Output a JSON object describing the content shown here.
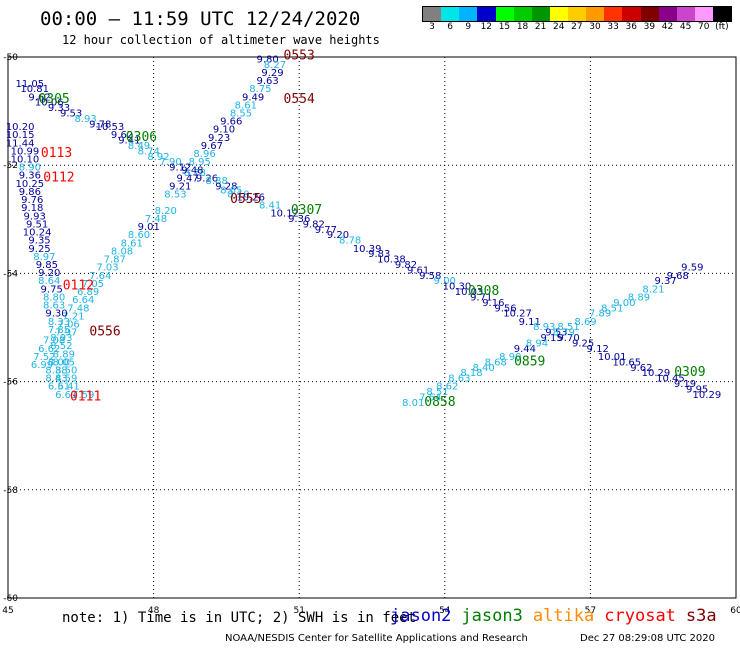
{
  "header": {
    "title": "00:00 – 11:59 UTC 12/24/2020",
    "subtitle": "12 hour collection of altimeter wave heights"
  },
  "legend": {
    "colors": [
      "#808080",
      "#00e6e6",
      "#00b4ff",
      "#0000cc",
      "#00ff00",
      "#00cc00",
      "#009600",
      "#ffff00",
      "#ffcc00",
      "#ff9900",
      "#ff3300",
      "#cc0000",
      "#800000",
      "#8b008b",
      "#cc44cc",
      "#ff99ff",
      "#000000"
    ],
    "labels": [
      "3",
      "6",
      "9",
      "12",
      "15",
      "18",
      "21",
      "24",
      "27",
      "30",
      "33",
      "36",
      "39",
      "42",
      "45",
      "70",
      "(ft)"
    ]
  },
  "axes": {
    "x_ticks": [
      "45",
      "48",
      "51",
      "54",
      "57",
      "60"
    ],
    "y_ticks": [
      "-50",
      "-52",
      "-54",
      "-56",
      "-58",
      "-60"
    ]
  },
  "footer": {
    "note": "note: 1) Time is in UTC; 2) SWH is in feet",
    "satellites": [
      {
        "name": "jason2",
        "color": "#0000cc"
      },
      {
        "name": "jason3",
        "color": "#008000"
      },
      {
        "name": "altika",
        "color": "#ff8c00"
      },
      {
        "name": "cryosat",
        "color": "#ff0000"
      },
      {
        "name": "s3a",
        "color": "#800000"
      }
    ],
    "credit": "NOAA/NESDIS Center for Satellite Applications and Research",
    "timestamp": "Dec 27 08:29:08 UTC 2020"
  },
  "colors": {
    "dark_blue": "#000099",
    "light_blue": "#1eb4e6",
    "green": "#008000",
    "red": "#ff0000",
    "maroon": "#800000"
  },
  "chart_data": {
    "type": "scatter",
    "xlim": [
      45,
      60
    ],
    "ylim": [
      -60,
      -50
    ],
    "grid": true,
    "observations": [
      {
        "x": 45.45,
        "y": -50.55,
        "v": "11.05",
        "c": "dark_blue"
      },
      {
        "x": 45.55,
        "y": -50.65,
        "v": "10.81",
        "c": "dark_blue"
      },
      {
        "x": 45.65,
        "y": -50.8,
        "v": "9.62",
        "c": "dark_blue"
      },
      {
        "x": 45.85,
        "y": -50.9,
        "v": "10.06",
        "c": "dark_blue"
      },
      {
        "x": 46.05,
        "y": -51.0,
        "v": "9.33",
        "c": "dark_blue"
      },
      {
        "x": 46.3,
        "y": -51.1,
        "v": "9.53",
        "c": "dark_blue"
      },
      {
        "x": 46.6,
        "y": -51.2,
        "v": "8.93",
        "c": "light_blue"
      },
      {
        "x": 46.9,
        "y": -51.3,
        "v": "9.78",
        "c": "dark_blue"
      },
      {
        "x": 47.1,
        "y": -51.35,
        "v": "10.53",
        "c": "dark_blue"
      },
      {
        "x": 47.35,
        "y": -51.5,
        "v": "9.62",
        "c": "dark_blue"
      },
      {
        "x": 47.5,
        "y": -51.6,
        "v": "9.41",
        "c": "dark_blue"
      },
      {
        "x": 47.7,
        "y": -51.7,
        "v": "8.49",
        "c": "light_blue"
      },
      {
        "x": 47.9,
        "y": -51.8,
        "v": "8.74",
        "c": "light_blue"
      },
      {
        "x": 48.1,
        "y": -51.9,
        "v": "8.92",
        "c": "light_blue"
      },
      {
        "x": 48.35,
        "y": -52.0,
        "v": "7.90",
        "c": "light_blue"
      },
      {
        "x": 48.55,
        "y": -52.1,
        "v": "9.12",
        "c": "dark_blue"
      },
      {
        "x": 48.85,
        "y": -52.2,
        "v": "8.78",
        "c": "light_blue"
      },
      {
        "x": 49.1,
        "y": -52.3,
        "v": "9.26",
        "c": "dark_blue"
      },
      {
        "x": 49.3,
        "y": -52.35,
        "v": "8.88",
        "c": "light_blue"
      },
      {
        "x": 49.5,
        "y": -52.45,
        "v": "9.28",
        "c": "dark_blue"
      },
      {
        "x": 49.6,
        "y": -52.52,
        "v": "8.65",
        "c": "light_blue"
      },
      {
        "x": 49.75,
        "y": -52.6,
        "v": "8.10",
        "c": "light_blue"
      },
      {
        "x": 50.0,
        "y": -52.65,
        "v": "10.26",
        "c": "dark_blue"
      },
      {
        "x": 50.4,
        "y": -52.8,
        "v": "8.41",
        "c": "light_blue"
      },
      {
        "x": 50.7,
        "y": -52.95,
        "v": "10.12",
        "c": "dark_blue"
      },
      {
        "x": 51.0,
        "y": -53.05,
        "v": "9.36",
        "c": "dark_blue"
      },
      {
        "x": 51.3,
        "y": -53.15,
        "v": "9.82",
        "c": "dark_blue"
      },
      {
        "x": 51.55,
        "y": -53.25,
        "v": "9.77",
        "c": "dark_blue"
      },
      {
        "x": 51.8,
        "y": -53.35,
        "v": "9.20",
        "c": "dark_blue"
      },
      {
        "x": 52.05,
        "y": -53.45,
        "v": "8.78",
        "c": "light_blue"
      },
      {
        "x": 52.4,
        "y": -53.6,
        "v": "10.39",
        "c": "dark_blue"
      },
      {
        "x": 52.65,
        "y": -53.7,
        "v": "9.83",
        "c": "dark_blue"
      },
      {
        "x": 52.9,
        "y": -53.8,
        "v": "10.38",
        "c": "dark_blue"
      },
      {
        "x": 53.2,
        "y": -53.9,
        "v": "9.82",
        "c": "dark_blue"
      },
      {
        "x": 53.45,
        "y": -54.0,
        "v": "9.61",
        "c": "dark_blue"
      },
      {
        "x": 53.7,
        "y": -54.1,
        "v": "9.58",
        "c": "dark_blue"
      },
      {
        "x": 54.0,
        "y": -54.2,
        "v": "9.00",
        "c": "light_blue"
      },
      {
        "x": 54.25,
        "y": -54.3,
        "v": "10.30",
        "c": "dark_blue"
      },
      {
        "x": 54.5,
        "y": -54.4,
        "v": "10.03",
        "c": "dark_blue"
      },
      {
        "x": 54.75,
        "y": -54.5,
        "v": "9.71",
        "c": "dark_blue"
      },
      {
        "x": 55.0,
        "y": -54.6,
        "v": "9.16",
        "c": "dark_blue"
      },
      {
        "x": 55.25,
        "y": -54.7,
        "v": "9.56",
        "c": "dark_blue"
      },
      {
        "x": 55.5,
        "y": -54.8,
        "v": "10.27",
        "c": "dark_blue"
      },
      {
        "x": 55.75,
        "y": -54.95,
        "v": "9.11",
        "c": "dark_blue"
      },
      {
        "x": 56.05,
        "y": -55.05,
        "v": "8.93",
        "c": "light_blue"
      },
      {
        "x": 56.3,
        "y": -55.15,
        "v": "9.53",
        "c": "dark_blue"
      },
      {
        "x": 56.55,
        "y": -55.25,
        "v": "9.70",
        "c": "dark_blue"
      },
      {
        "x": 56.85,
        "y": -55.35,
        "v": "9.25",
        "c": "dark_blue"
      },
      {
        "x": 57.15,
        "y": -55.45,
        "v": "9.12",
        "c": "dark_blue"
      },
      {
        "x": 57.45,
        "y": -55.6,
        "v": "10.01",
        "c": "dark_blue"
      },
      {
        "x": 57.75,
        "y": -55.7,
        "v": "10.65",
        "c": "dark_blue"
      },
      {
        "x": 58.05,
        "y": -55.8,
        "v": "9.62",
        "c": "dark_blue"
      },
      {
        "x": 58.35,
        "y": -55.9,
        "v": "10.29",
        "c": "dark_blue"
      },
      {
        "x": 58.65,
        "y": -56.0,
        "v": "10.45",
        "c": "dark_blue"
      },
      {
        "x": 58.95,
        "y": -56.1,
        "v": "9.19",
        "c": "dark_blue"
      },
      {
        "x": 59.2,
        "y": -56.2,
        "v": "9.95",
        "c": "dark_blue"
      },
      {
        "x": 59.4,
        "y": -56.3,
        "v": "10.29",
        "c": "dark_blue"
      },
      {
        "x": 50.35,
        "y": -50.1,
        "v": "9.80",
        "c": "dark_blue"
      },
      {
        "x": 50.5,
        "y": -50.2,
        "v": "8.27",
        "c": "light_blue"
      },
      {
        "x": 50.45,
        "y": -50.35,
        "v": "9.29",
        "c": "dark_blue"
      },
      {
        "x": 50.35,
        "y": -50.5,
        "v": "9.63",
        "c": "dark_blue"
      },
      {
        "x": 50.2,
        "y": -50.65,
        "v": "8.75",
        "c": "light_blue"
      },
      {
        "x": 50.05,
        "y": -50.8,
        "v": "9.49",
        "c": "dark_blue"
      },
      {
        "x": 49.9,
        "y": -50.95,
        "v": "8.61",
        "c": "light_blue"
      },
      {
        "x": 49.8,
        "y": -51.1,
        "v": "8.55",
        "c": "light_blue"
      },
      {
        "x": 49.6,
        "y": -51.25,
        "v": "9.66",
        "c": "dark_blue"
      },
      {
        "x": 49.45,
        "y": -51.4,
        "v": "9.10",
        "c": "dark_blue"
      },
      {
        "x": 49.35,
        "y": -51.55,
        "v": "9.23",
        "c": "dark_blue"
      },
      {
        "x": 49.2,
        "y": -51.7,
        "v": "9.67",
        "c": "dark_blue"
      },
      {
        "x": 49.05,
        "y": -51.85,
        "v": "8.96",
        "c": "light_blue"
      },
      {
        "x": 48.95,
        "y": -52.0,
        "v": "8.95",
        "c": "light_blue"
      },
      {
        "x": 48.8,
        "y": -52.15,
        "v": "9.48",
        "c": "dark_blue"
      },
      {
        "x": 48.7,
        "y": -52.3,
        "v": "9.47",
        "c": "dark_blue"
      },
      {
        "x": 48.55,
        "y": -52.45,
        "v": "9.21",
        "c": "dark_blue"
      },
      {
        "x": 48.45,
        "y": -52.6,
        "v": "8.53",
        "c": "light_blue"
      },
      {
        "x": 48.25,
        "y": -52.9,
        "v": "8.20",
        "c": "light_blue"
      },
      {
        "x": 48.05,
        "y": -53.05,
        "v": "7.48",
        "c": "light_blue"
      },
      {
        "x": 47.9,
        "y": -53.2,
        "v": "9.01",
        "c": "dark_blue"
      },
      {
        "x": 47.7,
        "y": -53.35,
        "v": "8.60",
        "c": "light_blue"
      },
      {
        "x": 47.55,
        "y": -53.5,
        "v": "8.61",
        "c": "light_blue"
      },
      {
        "x": 47.35,
        "y": -53.65,
        "v": "8.08",
        "c": "light_blue"
      },
      {
        "x": 47.2,
        "y": -53.8,
        "v": "7.87",
        "c": "light_blue"
      },
      {
        "x": 47.05,
        "y": -53.95,
        "v": "7.03",
        "c": "light_blue"
      },
      {
        "x": 46.9,
        "y": -54.1,
        "v": "7.64",
        "c": "light_blue"
      },
      {
        "x": 46.75,
        "y": -54.25,
        "v": "7.05",
        "c": "light_blue"
      },
      {
        "x": 46.65,
        "y": -54.4,
        "v": "6.89",
        "c": "light_blue"
      },
      {
        "x": 46.55,
        "y": -54.55,
        "v": "6.64",
        "c": "light_blue"
      },
      {
        "x": 46.45,
        "y": -54.7,
        "v": "7.48",
        "c": "light_blue"
      },
      {
        "x": 46.35,
        "y": -54.85,
        "v": "7.21",
        "c": "light_blue"
      },
      {
        "x": 46.25,
        "y": -55.0,
        "v": "7.06",
        "c": "light_blue"
      },
      {
        "x": 46.2,
        "y": -55.15,
        "v": "7.97",
        "c": "light_blue"
      },
      {
        "x": 45.95,
        "y": -55.3,
        "v": "7.08",
        "c": "light_blue"
      },
      {
        "x": 45.85,
        "y": -55.45,
        "v": "6.62",
        "c": "light_blue"
      },
      {
        "x": 45.75,
        "y": -55.6,
        "v": "7.52",
        "c": "light_blue"
      },
      {
        "x": 45.7,
        "y": -55.75,
        "v": "6.99",
        "c": "light_blue"
      },
      {
        "x": 45.25,
        "y": -51.35,
        "v": "10.20",
        "c": "dark_blue"
      },
      {
        "x": 45.25,
        "y": -51.5,
        "v": "10.15",
        "c": "dark_blue"
      },
      {
        "x": 45.25,
        "y": -51.65,
        "v": "11.44",
        "c": "dark_blue"
      },
      {
        "x": 45.35,
        "y": -51.8,
        "v": "10.99",
        "c": "dark_blue"
      },
      {
        "x": 45.35,
        "y": -51.95,
        "v": "10.10",
        "c": "dark_blue"
      },
      {
        "x": 45.45,
        "y": -52.1,
        "v": "8.90",
        "c": "light_blue"
      },
      {
        "x": 45.45,
        "y": -52.25,
        "v": "9.36",
        "c": "dark_blue"
      },
      {
        "x": 45.45,
        "y": -52.4,
        "v": "10.25",
        "c": "dark_blue"
      },
      {
        "x": 45.45,
        "y": -52.55,
        "v": "9.86",
        "c": "dark_blue"
      },
      {
        "x": 45.5,
        "y": -52.7,
        "v": "9.76",
        "c": "dark_blue"
      },
      {
        "x": 45.5,
        "y": -52.85,
        "v": "9.18",
        "c": "dark_blue"
      },
      {
        "x": 45.55,
        "y": -53.0,
        "v": "9.93",
        "c": "dark_blue"
      },
      {
        "x": 45.6,
        "y": -53.15,
        "v": "9.51",
        "c": "dark_blue"
      },
      {
        "x": 45.6,
        "y": -53.3,
        "v": "10.24",
        "c": "dark_blue"
      },
      {
        "x": 45.65,
        "y": -53.45,
        "v": "9.35",
        "c": "dark_blue"
      },
      {
        "x": 45.65,
        "y": -53.6,
        "v": "9.25",
        "c": "dark_blue"
      },
      {
        "x": 45.75,
        "y": -53.75,
        "v": "8.97",
        "c": "light_blue"
      },
      {
        "x": 45.8,
        "y": -53.9,
        "v": "9.85",
        "c": "dark_blue"
      },
      {
        "x": 45.85,
        "y": -54.05,
        "v": "9.20",
        "c": "dark_blue"
      },
      {
        "x": 45.85,
        "y": -54.2,
        "v": "8.64",
        "c": "light_blue"
      },
      {
        "x": 45.9,
        "y": -54.35,
        "v": "9.75",
        "c": "dark_blue"
      },
      {
        "x": 45.95,
        "y": -54.5,
        "v": "8.80",
        "c": "light_blue"
      },
      {
        "x": 45.95,
        "y": -54.65,
        "v": "8.63",
        "c": "light_blue"
      },
      {
        "x": 46.0,
        "y": -54.8,
        "v": "9.30",
        "c": "dark_blue"
      },
      {
        "x": 46.05,
        "y": -54.95,
        "v": "8.33",
        "c": "light_blue"
      },
      {
        "x": 46.05,
        "y": -55.1,
        "v": "7.85",
        "c": "light_blue"
      },
      {
        "x": 46.1,
        "y": -55.25,
        "v": "8.93",
        "c": "light_blue"
      },
      {
        "x": 46.1,
        "y": -55.4,
        "v": "8.52",
        "c": "light_blue"
      },
      {
        "x": 46.15,
        "y": -55.55,
        "v": "8.89",
        "c": "light_blue"
      },
      {
        "x": 46.15,
        "y": -55.7,
        "v": "8.05",
        "c": "light_blue"
      },
      {
        "x": 46.2,
        "y": -55.85,
        "v": "8.50",
        "c": "light_blue"
      },
      {
        "x": 46.2,
        "y": -56.0,
        "v": "8.59",
        "c": "light_blue"
      },
      {
        "x": 46.25,
        "y": -56.15,
        "v": "6.41",
        "c": "light_blue"
      },
      {
        "x": 46.2,
        "y": -56.3,
        "v": "6.61",
        "c": "light_blue"
      },
      {
        "x": 46.55,
        "y": -56.3,
        "v": "7.59",
        "c": "light_blue"
      },
      {
        "x": 46.05,
        "y": -55.7,
        "v": "8.00",
        "c": "light_blue"
      },
      {
        "x": 46.0,
        "y": -55.85,
        "v": "8.38",
        "c": "light_blue"
      },
      {
        "x": 46.0,
        "y": -56.0,
        "v": "8.43",
        "c": "light_blue"
      },
      {
        "x": 46.05,
        "y": -56.15,
        "v": "6.51",
        "c": "light_blue"
      },
      {
        "x": 53.35,
        "y": -56.45,
        "v": "8.01",
        "c": "light_blue"
      },
      {
        "x": 53.7,
        "y": -56.35,
        "v": "7.54",
        "c": "light_blue"
      },
      {
        "x": 53.85,
        "y": -56.25,
        "v": "8.51",
        "c": "light_blue"
      },
      {
        "x": 54.05,
        "y": -56.15,
        "v": "8.62",
        "c": "light_blue"
      },
      {
        "x": 54.3,
        "y": -56.0,
        "v": "8.63",
        "c": "light_blue"
      },
      {
        "x": 54.55,
        "y": -55.9,
        "v": "8.18",
        "c": "light_blue"
      },
      {
        "x": 54.8,
        "y": -55.8,
        "v": "8.40",
        "c": "light_blue"
      },
      {
        "x": 55.05,
        "y": -55.7,
        "v": "8.68",
        "c": "light_blue"
      },
      {
        "x": 55.35,
        "y": -55.6,
        "v": "8.90",
        "c": "light_blue"
      },
      {
        "x": 55.65,
        "y": -55.45,
        "v": "9.44",
        "c": "dark_blue"
      },
      {
        "x": 55.9,
        "y": -55.35,
        "v": "8.94",
        "c": "light_blue"
      },
      {
        "x": 56.2,
        "y": -55.25,
        "v": "9.15",
        "c": "dark_blue"
      },
      {
        "x": 56.45,
        "y": -55.15,
        "v": "8.79",
        "c": "light_blue"
      },
      {
        "x": 56.55,
        "y": -55.05,
        "v": "8.51",
        "c": "light_blue"
      },
      {
        "x": 56.9,
        "y": -54.95,
        "v": "8.69",
        "c": "light_blue"
      },
      {
        "x": 57.2,
        "y": -54.8,
        "v": "7.89",
        "c": "light_blue"
      },
      {
        "x": 57.45,
        "y": -54.7,
        "v": "8.51",
        "c": "light_blue"
      },
      {
        "x": 57.7,
        "y": -54.6,
        "v": "9.00",
        "c": "light_blue"
      },
      {
        "x": 58.0,
        "y": -54.5,
        "v": "8.89",
        "c": "light_blue"
      },
      {
        "x": 58.3,
        "y": -54.35,
        "v": "8.21",
        "c": "light_blue"
      },
      {
        "x": 58.55,
        "y": -54.2,
        "v": "9.37",
        "c": "dark_blue"
      },
      {
        "x": 58.8,
        "y": -54.1,
        "v": "9.68",
        "c": "dark_blue"
      },
      {
        "x": 59.1,
        "y": -53.95,
        "v": "9.59",
        "c": "dark_blue"
      }
    ],
    "pass_labels": [
      {
        "x": 51.0,
        "y": -50.05,
        "t": "0553",
        "c": "maroon"
      },
      {
        "x": 51.0,
        "y": -50.85,
        "t": "0554",
        "c": "maroon"
      },
      {
        "x": 45.95,
        "y": -50.85,
        "t": "0305",
        "c": "green"
      },
      {
        "x": 47.75,
        "y": -51.55,
        "t": "0306",
        "c": "green"
      },
      {
        "x": 46.0,
        "y": -51.85,
        "t": "0113",
        "c": "red"
      },
      {
        "x": 46.05,
        "y": -52.3,
        "t": "0112",
        "c": "red"
      },
      {
        "x": 49.9,
        "y": -52.7,
        "t": "0555",
        "c": "maroon"
      },
      {
        "x": 51.15,
        "y": -52.9,
        "t": "0307",
        "c": "green"
      },
      {
        "x": 46.45,
        "y": -54.3,
        "t": "0112",
        "c": "red"
      },
      {
        "x": 54.8,
        "y": -54.4,
        "t": "0308",
        "c": "green"
      },
      {
        "x": 47.0,
        "y": -55.15,
        "t": "0556",
        "c": "maroon"
      },
      {
        "x": 55.75,
        "y": -55.7,
        "t": "0859",
        "c": "green"
      },
      {
        "x": 59.05,
        "y": -55.9,
        "t": "0309",
        "c": "green"
      },
      {
        "x": 46.6,
        "y": -56.35,
        "t": "0111",
        "c": "red"
      },
      {
        "x": 53.9,
        "y": -56.45,
        "t": "0858",
        "c": "green"
      }
    ]
  }
}
